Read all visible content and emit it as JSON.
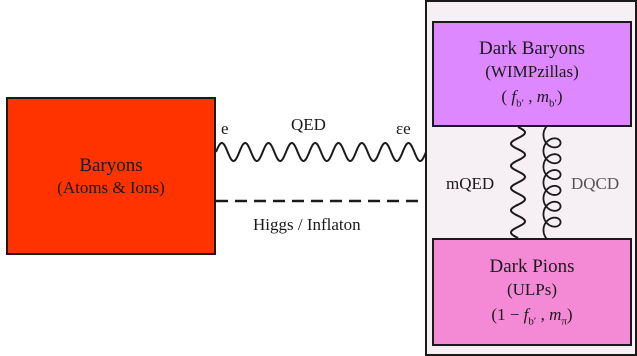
{
  "colors": {
    "baryons_fill": "#ff3300",
    "dark_baryons_fill": "#dd88ff",
    "dark_pions_fill": "#f48ad6",
    "dark_sector_fill": "#f6f0f4",
    "line": "#1a1a1a"
  },
  "baryons": {
    "title": "Baryons",
    "subtitle": "(Atoms & Ions)"
  },
  "dark_baryons": {
    "title": "Dark Baryons",
    "subtitle": "(WIMPzillas)",
    "param_fraction": "f",
    "param_fraction_sub": "b′",
    "param_mass": "m",
    "param_mass_sub": "b′"
  },
  "dark_pions": {
    "title": "Dark Pions",
    "subtitle": "(ULPs)",
    "param_one_minus": "1 − ",
    "param_fraction": "f",
    "param_fraction_sub": "b′",
    "param_mass": "m",
    "param_mass_sub": "π"
  },
  "labels": {
    "qed": "QED",
    "e_left": "e",
    "e_right": "εe",
    "higgs": "Higgs / Inflaton",
    "mqed": "mQED",
    "dqcd": "DQCD"
  }
}
